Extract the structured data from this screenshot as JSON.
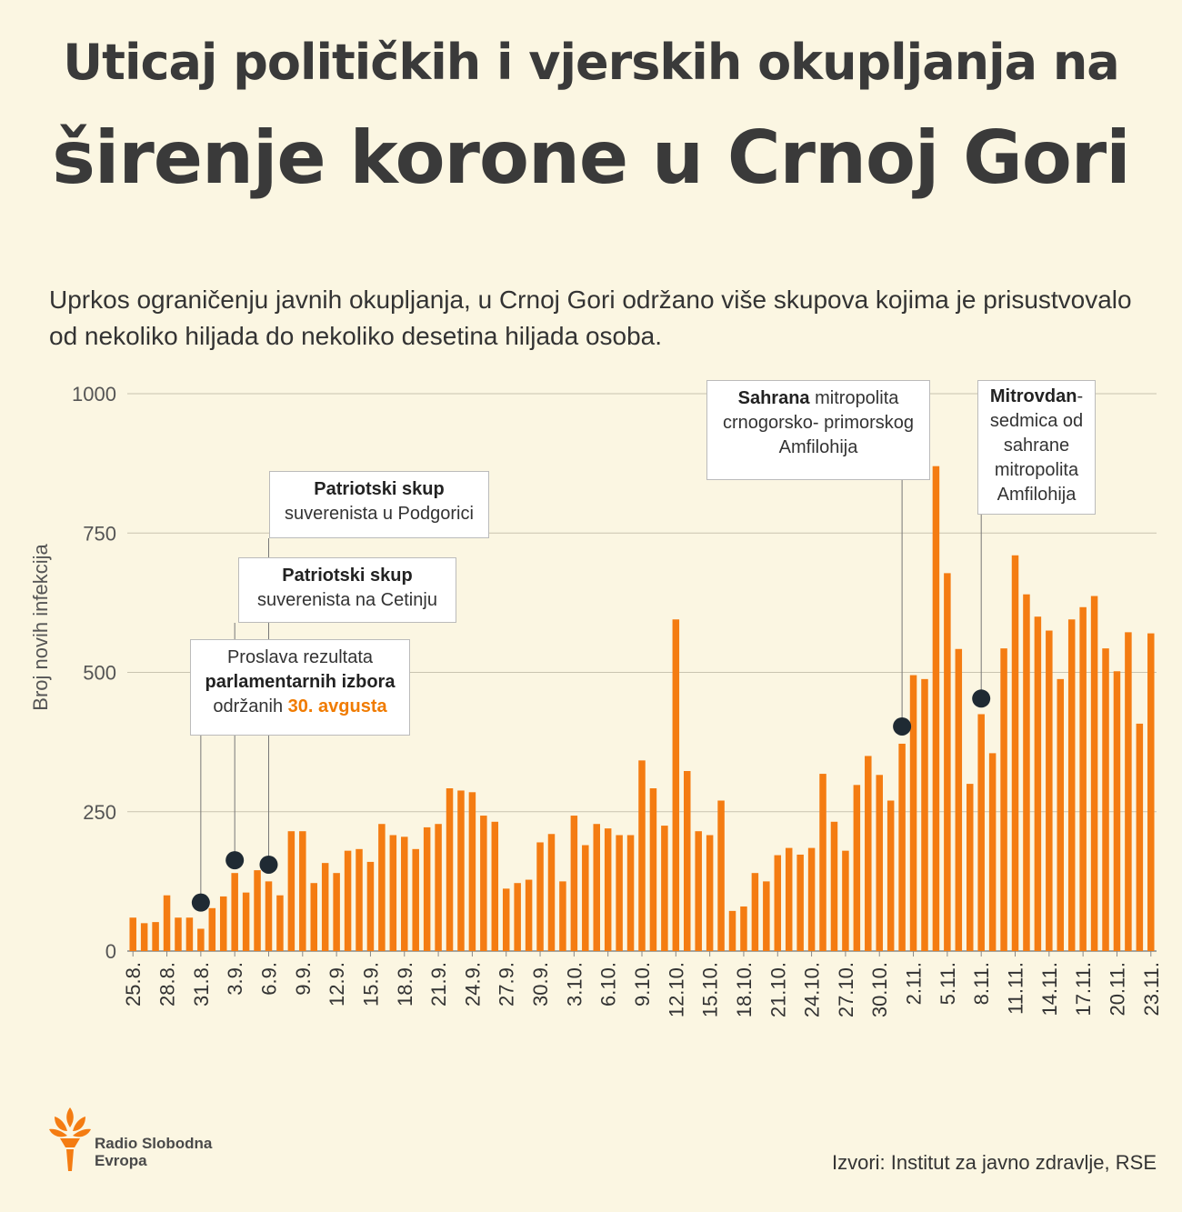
{
  "header": {
    "title_line1": "Uticaj političkih i vjerskih okupljanja na",
    "title_line2": "širenje korone u Crnoj Gori",
    "subtitle": "Uprkos ograničenju javnih okupljanja, u Crnoj Gori održano više skupova kojima je prisustvovalo od nekoliko hiljada do nekoliko desetina hiljada osoba."
  },
  "colors": {
    "bar": "#f47c12",
    "marker": "#1f2a33",
    "background": "#fbf6e2",
    "highlight": "#f07b00"
  },
  "annotations": {
    "a1": {
      "line1": "Proslava rezultata",
      "bold": "parlamentarnih izbora",
      "pre": "održanih ",
      "highlight": "30. avgusta"
    },
    "a2": {
      "bold": "Patriotski skup",
      "line2": "suverenista na Cetinju"
    },
    "a3": {
      "bold": "Patriotski skup",
      "line2": "suverenista u Podgorici"
    },
    "a4": {
      "bold": "Sahrana",
      "rest1": " mitropolita",
      "line2": "crnogorsko- primorskog",
      "line3": "Amfilohija"
    },
    "a5": {
      "bold": "Mitrovdan",
      "rest1": "-",
      "line2": "sedmica od",
      "line3": "sahrane",
      "line4": "mitropolita",
      "line5": "Amfilohija"
    }
  },
  "footer": {
    "logo_line1": "Radio Slobodna",
    "logo_line2": "Evropa",
    "logo_icon": "torch-icon",
    "source": "Izvori: Institut za javno zdravlje, RSE"
  },
  "chart_data": {
    "type": "bar",
    "ylabel": "Broj novih infekcija",
    "ylim": [
      0,
      1000
    ],
    "yticks": [
      0,
      250,
      500,
      750,
      1000
    ],
    "grid": true,
    "categories": [
      "25.8.",
      "26.8.",
      "27.8.",
      "28.8.",
      "29.8.",
      "30.8.",
      "31.8.",
      "1.9.",
      "2.9.",
      "3.9.",
      "4.9.",
      "5.9.",
      "6.9.",
      "7.9.",
      "8.9.",
      "9.9.",
      "10.9.",
      "11.9.",
      "12.9.",
      "13.9.",
      "14.9.",
      "15.9.",
      "16.9.",
      "17.9.",
      "18.9.",
      "19.9.",
      "20.9.",
      "21.9.",
      "22.9.",
      "23.9.",
      "24.9.",
      "25.9.",
      "26.9.",
      "27.9.",
      "28.9.",
      "29.9.",
      "30.9.",
      "1.10.",
      "2.10.",
      "3.10.",
      "4.10.",
      "5.10.",
      "6.10.",
      "7.10.",
      "8.10.",
      "9.10.",
      "10.10.",
      "11.10.",
      "12.10.",
      "13.10.",
      "14.10.",
      "15.10.",
      "16.10.",
      "17.10.",
      "18.10.",
      "19.10.",
      "20.10.",
      "21.10.",
      "22.10.",
      "23.10.",
      "24.10.",
      "25.10.",
      "26.10.",
      "27.10.",
      "28.10.",
      "29.10.",
      "30.10.",
      "31.10.",
      "1.11.",
      "2.11.",
      "3.11.",
      "4.11.",
      "5.11.",
      "6.11.",
      "7.11.",
      "8.11.",
      "9.11.",
      "10.11.",
      "11.11.",
      "12.11.",
      "13.11.",
      "14.11.",
      "15.11.",
      "16.11.",
      "17.11.",
      "18.11.",
      "19.11.",
      "20.11.",
      "21.11.",
      "22.11.",
      "23.11."
    ],
    "tick_labels": [
      "25.8.",
      "28.8.",
      "31.8.",
      "3.9.",
      "6.9.",
      "9.9.",
      "12.9.",
      "15.9.",
      "18.9.",
      "21.9.",
      "24.9.",
      "27.9.",
      "30.9.",
      "3.10.",
      "6.10.",
      "9.10.",
      "12.10.",
      "15.10.",
      "18.10.",
      "21.10.",
      "24.10.",
      "27.10.",
      "30.10.",
      "2.11.",
      "5.11.",
      "8.11.",
      "11.11.",
      "14.11.",
      "17.11.",
      "20.11.",
      "23.11."
    ],
    "values": [
      60,
      50,
      52,
      100,
      60,
      60,
      40,
      77,
      98,
      140,
      105,
      145,
      125,
      100,
      215,
      215,
      122,
      158,
      140,
      180,
      183,
      160,
      228,
      208,
      205,
      183,
      222,
      228,
      292,
      288,
      285,
      243,
      232,
      112,
      122,
      128,
      195,
      210,
      125,
      243,
      190,
      228,
      220,
      208,
      208,
      342,
      292,
      225,
      595,
      323,
      215,
      208,
      270,
      72,
      80,
      140,
      125,
      172,
      185,
      173,
      185,
      318,
      232,
      180,
      298,
      350,
      316,
      270,
      372,
      495,
      488,
      870,
      678,
      542,
      300,
      425,
      355,
      543,
      710,
      640,
      600,
      575,
      488,
      595,
      617,
      637,
      543,
      502,
      572,
      408,
      570
    ],
    "markers": [
      {
        "category": "31.8.",
        "value": 87
      },
      {
        "category": "3.9.",
        "value": 163
      },
      {
        "category": "6.9.",
        "value": 155
      },
      {
        "category": "1.11.",
        "value": 403
      },
      {
        "category": "8.11.",
        "value": 453
      }
    ]
  }
}
